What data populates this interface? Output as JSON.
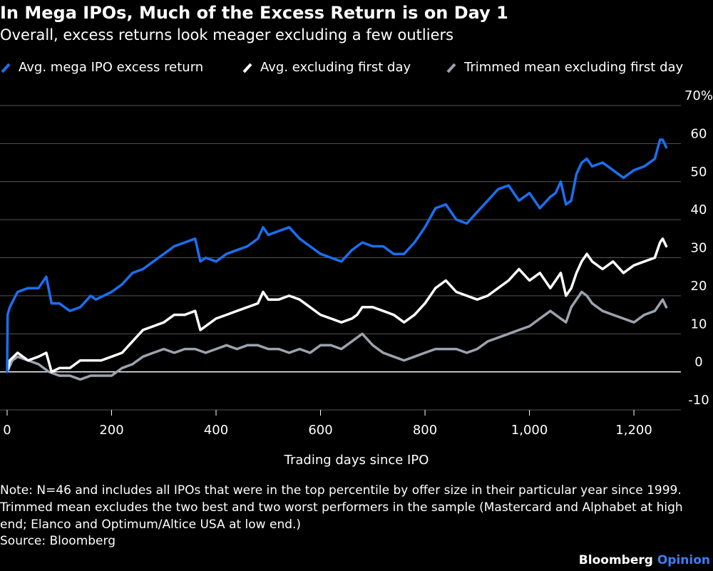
{
  "title": "In Mega IPOs, Much of the Excess Return is on Day 1",
  "subtitle": "Overall, excess returns look meager excluding a few outliers",
  "colors": {
    "background": "#000000",
    "blue": "#1a6ff0",
    "white": "#ffffff",
    "gray": "#9ca3ad",
    "gridline": "#555555"
  },
  "legend": [
    {
      "label": "Avg. mega IPO excess return",
      "color": "#1a6ff0",
      "icon": "slash-swatch-icon"
    },
    {
      "label": "Avg. excluding first day",
      "color": "#ffffff",
      "icon": "slash-swatch-icon"
    },
    {
      "label": "Trimmed mean excluding first day",
      "color": "#9ca3ad",
      "icon": "slash-swatch-icon"
    }
  ],
  "note": "Note: N=46 and includes all IPOs that were in the top percentile by offer size in their particular year since 1999. Trimmed mean excludes the two best and two worst performers in the sample (Mastercard and Alphabet at high end; Elanco and Optimum/Altice USA at low end.)",
  "source": "Source: Bloomberg",
  "brand": {
    "name": "Bloomberg",
    "suffix": "Opinion"
  },
  "chart_data": {
    "type": "line",
    "xlabel": "Trading days since IPO",
    "ylabel": "",
    "xlim": [
      0,
      1290
    ],
    "ylim": [
      -10,
      70
    ],
    "x_ticks": [
      0,
      200,
      400,
      600,
      800,
      1000,
      1200
    ],
    "x_tick_labels": [
      "0",
      "200",
      "400",
      "600",
      "800",
      "1,000",
      "1,200"
    ],
    "y_ticks": [
      -10,
      0,
      10,
      20,
      30,
      40,
      50,
      60,
      70
    ],
    "y_tick_labels": [
      "-10",
      "0",
      "10",
      "20",
      "30",
      "40",
      "50",
      "60",
      "70%"
    ],
    "grid": "horizontal",
    "series": [
      {
        "name": "Avg. mega IPO excess return",
        "color": "#1a6ff0",
        "x": [
          0,
          1,
          5,
          20,
          40,
          60,
          75,
          85,
          100,
          120,
          140,
          160,
          170,
          200,
          220,
          240,
          260,
          280,
          300,
          320,
          340,
          360,
          370,
          380,
          400,
          420,
          440,
          460,
          480,
          490,
          500,
          520,
          540,
          560,
          580,
          600,
          620,
          640,
          660,
          670,
          680,
          700,
          720,
          740,
          760,
          780,
          800,
          820,
          840,
          860,
          880,
          900,
          920,
          940,
          960,
          980,
          1000,
          1020,
          1040,
          1050,
          1060,
          1070,
          1080,
          1090,
          1100,
          1110,
          1120,
          1140,
          1160,
          1180,
          1200,
          1220,
          1240,
          1250,
          1255,
          1262
        ],
        "values": [
          0,
          15,
          17,
          21,
          22,
          22,
          25,
          18,
          18,
          16,
          17,
          20,
          19,
          21,
          23,
          26,
          27,
          29,
          31,
          33,
          34,
          35,
          29,
          30,
          29,
          31,
          32,
          33,
          35,
          38,
          36,
          37,
          38,
          35,
          33,
          31,
          30,
          29,
          32,
          33,
          34,
          33,
          33,
          31,
          31,
          34,
          38,
          43,
          44,
          40,
          39,
          42,
          45,
          48,
          49,
          45,
          47,
          43,
          46,
          47,
          50,
          44,
          45,
          52,
          55,
          56,
          54,
          55,
          53,
          51,
          53,
          54,
          56,
          61,
          61,
          59
        ]
      },
      {
        "name": "Avg. excluding first day",
        "color": "#ffffff",
        "x": [
          0,
          5,
          20,
          40,
          60,
          75,
          85,
          100,
          120,
          140,
          160,
          180,
          200,
          220,
          240,
          260,
          280,
          300,
          320,
          340,
          360,
          370,
          380,
          400,
          420,
          440,
          460,
          480,
          490,
          500,
          520,
          540,
          560,
          580,
          600,
          620,
          640,
          660,
          670,
          680,
          700,
          720,
          740,
          760,
          780,
          800,
          820,
          840,
          860,
          880,
          900,
          920,
          940,
          960,
          980,
          1000,
          1020,
          1040,
          1050,
          1060,
          1070,
          1080,
          1090,
          1100,
          1110,
          1120,
          1140,
          1160,
          1180,
          1200,
          1220,
          1240,
          1250,
          1255,
          1262
        ],
        "values": [
          0,
          3,
          5,
          3,
          4,
          5,
          0,
          1,
          1,
          3,
          3,
          3,
          4,
          5,
          8,
          11,
          12,
          13,
          15,
          15,
          16,
          11,
          12,
          14,
          15,
          16,
          17,
          18,
          21,
          19,
          19,
          20,
          19,
          17,
          15,
          14,
          13,
          14,
          15,
          17,
          17,
          16,
          15,
          13,
          15,
          18,
          22,
          24,
          21,
          20,
          19,
          20,
          22,
          24,
          27,
          24,
          26,
          22,
          24,
          26,
          20,
          22,
          26,
          29,
          31,
          29,
          27,
          29,
          26,
          28,
          29,
          30,
          34,
          35,
          33
        ]
      },
      {
        "name": "Trimmed mean excluding first day",
        "color": "#9ca3ad",
        "x": [
          0,
          10,
          20,
          40,
          60,
          80,
          100,
          120,
          140,
          160,
          180,
          200,
          220,
          240,
          260,
          280,
          300,
          320,
          340,
          360,
          380,
          400,
          420,
          440,
          460,
          480,
          500,
          520,
          540,
          560,
          580,
          600,
          620,
          640,
          660,
          670,
          680,
          700,
          720,
          740,
          760,
          780,
          800,
          820,
          840,
          860,
          880,
          900,
          920,
          940,
          960,
          980,
          1000,
          1020,
          1040,
          1050,
          1060,
          1070,
          1080,
          1090,
          1100,
          1110,
          1120,
          1140,
          1160,
          1180,
          1200,
          1220,
          1240,
          1250,
          1255,
          1262
        ],
        "values": [
          0,
          3,
          4,
          3,
          2,
          0,
          -1,
          -1,
          -2,
          -1,
          -1,
          -1,
          1,
          2,
          4,
          5,
          6,
          5,
          6,
          6,
          5,
          6,
          7,
          6,
          7,
          7,
          6,
          6,
          5,
          6,
          5,
          7,
          7,
          6,
          8,
          9,
          10,
          7,
          5,
          4,
          3,
          4,
          5,
          6,
          6,
          6,
          5,
          6,
          8,
          9,
          10,
          11,
          12,
          14,
          16,
          15,
          14,
          13,
          17,
          19,
          21,
          20,
          18,
          16,
          15,
          14,
          13,
          15,
          16,
          18,
          19,
          17
        ]
      }
    ]
  }
}
